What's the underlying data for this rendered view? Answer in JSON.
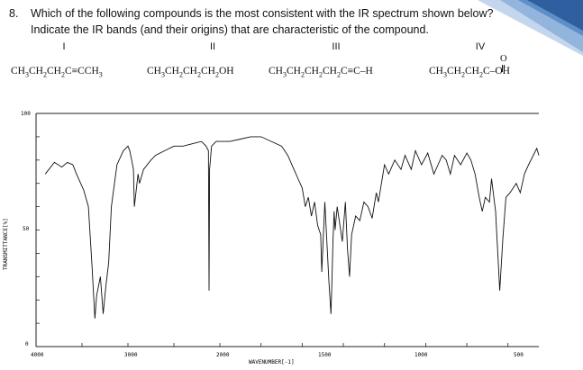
{
  "question": {
    "number": "8.",
    "line1": "Which of the following compounds is the most consistent with the IR spectrum shown below?",
    "line2": "Indicate the IR bands (and their origins) that are characteristic of the compound."
  },
  "compounds": [
    {
      "numeral": "I",
      "formula": "CH3CH2CH2C≡CCH3"
    },
    {
      "numeral": "II",
      "formula": "CH3CH2CH2CH2OH"
    },
    {
      "numeral": "III",
      "formula": "CH3CH2CH2CH2C≡C–H"
    },
    {
      "numeral": "IV",
      "formula": "CH3CH2CH2C(=O)–OH",
      "carbonyl_label": "O"
    }
  ],
  "spectrum": {
    "ylabel": "TRANSMITTANCE[%]",
    "xlabel": "WAVENUMBER[-1]",
    "ytick_labels": [
      "100",
      "50",
      "0"
    ],
    "xtick_labels": [
      "4000",
      "3000",
      "2000",
      "1500",
      "1000",
      "500"
    ]
  },
  "chart_data": {
    "type": "line",
    "xlabel": "WAVENUMBER[-1]",
    "ylabel": "TRANSMITTANCE[%]",
    "x_reversed": true,
    "xlim": [
      4000,
      400
    ],
    "ylim": [
      0,
      100
    ],
    "scale_break_at": 2000,
    "series": [
      {
        "points": [
          [
            3900,
            74
          ],
          [
            3800,
            79
          ],
          [
            3720,
            77
          ],
          [
            3660,
            79
          ],
          [
            3600,
            78
          ],
          [
            3560,
            74
          ],
          [
            3480,
            67
          ],
          [
            3430,
            60
          ],
          [
            3390,
            34
          ],
          [
            3360,
            12
          ],
          [
            3340,
            22
          ],
          [
            3300,
            30
          ],
          [
            3270,
            14
          ],
          [
            3240,
            26
          ],
          [
            3210,
            36
          ],
          [
            3180,
            60
          ],
          [
            3120,
            78
          ],
          [
            3050,
            84
          ],
          [
            3000,
            86
          ],
          [
            2980,
            84
          ],
          [
            2960,
            80
          ],
          [
            2940,
            76
          ],
          [
            2930,
            60
          ],
          [
            2890,
            74
          ],
          [
            2875,
            70
          ],
          [
            2830,
            76
          ],
          [
            2750,
            80
          ],
          [
            2700,
            82
          ],
          [
            2600,
            84
          ],
          [
            2500,
            86
          ],
          [
            2400,
            86
          ],
          [
            2300,
            87
          ],
          [
            2200,
            88
          ],
          [
            2150,
            86
          ],
          [
            2125,
            84
          ],
          [
            2118,
            24
          ],
          [
            2112,
            76
          ],
          [
            2090,
            86
          ],
          [
            2040,
            88
          ],
          [
            2000,
            88
          ],
          [
            1950,
            88
          ],
          [
            1900,
            89
          ],
          [
            1850,
            90
          ],
          [
            1800,
            90
          ],
          [
            1750,
            88
          ],
          [
            1700,
            86
          ],
          [
            1670,
            82
          ],
          [
            1640,
            76
          ],
          [
            1620,
            72
          ],
          [
            1600,
            68
          ],
          [
            1585,
            60
          ],
          [
            1570,
            64
          ],
          [
            1555,
            56
          ],
          [
            1540,
            62
          ],
          [
            1525,
            52
          ],
          [
            1510,
            48
          ],
          [
            1505,
            32
          ],
          [
            1490,
            62
          ],
          [
            1470,
            28
          ],
          [
            1460,
            14
          ],
          [
            1455,
            30
          ],
          [
            1450,
            46
          ],
          [
            1445,
            58
          ],
          [
            1440,
            50
          ],
          [
            1430,
            60
          ],
          [
            1420,
            54
          ],
          [
            1405,
            45
          ],
          [
            1390,
            62
          ],
          [
            1380,
            42
          ],
          [
            1370,
            30
          ],
          [
            1360,
            48
          ],
          [
            1340,
            56
          ],
          [
            1320,
            54
          ],
          [
            1300,
            62
          ],
          [
            1280,
            60
          ],
          [
            1260,
            55
          ],
          [
            1240,
            66
          ],
          [
            1230,
            62
          ],
          [
            1200,
            78
          ],
          [
            1180,
            74
          ],
          [
            1150,
            80
          ],
          [
            1120,
            76
          ],
          [
            1100,
            82
          ],
          [
            1070,
            76
          ],
          [
            1050,
            84
          ],
          [
            1020,
            78
          ],
          [
            990,
            83
          ],
          [
            960,
            74
          ],
          [
            940,
            78
          ],
          [
            920,
            82
          ],
          [
            900,
            80
          ],
          [
            880,
            74
          ],
          [
            860,
            82
          ],
          [
            830,
            78
          ],
          [
            800,
            83
          ],
          [
            780,
            80
          ],
          [
            760,
            74
          ],
          [
            740,
            64
          ],
          [
            725,
            58
          ],
          [
            710,
            64
          ],
          [
            690,
            62
          ],
          [
            680,
            72
          ],
          [
            660,
            58
          ],
          [
            640,
            24
          ],
          [
            625,
            46
          ],
          [
            610,
            64
          ],
          [
            590,
            66
          ],
          [
            560,
            70
          ],
          [
            540,
            66
          ],
          [
            520,
            74
          ],
          [
            500,
            78
          ],
          [
            460,
            85
          ],
          [
            450,
            82
          ]
        ]
      }
    ]
  }
}
